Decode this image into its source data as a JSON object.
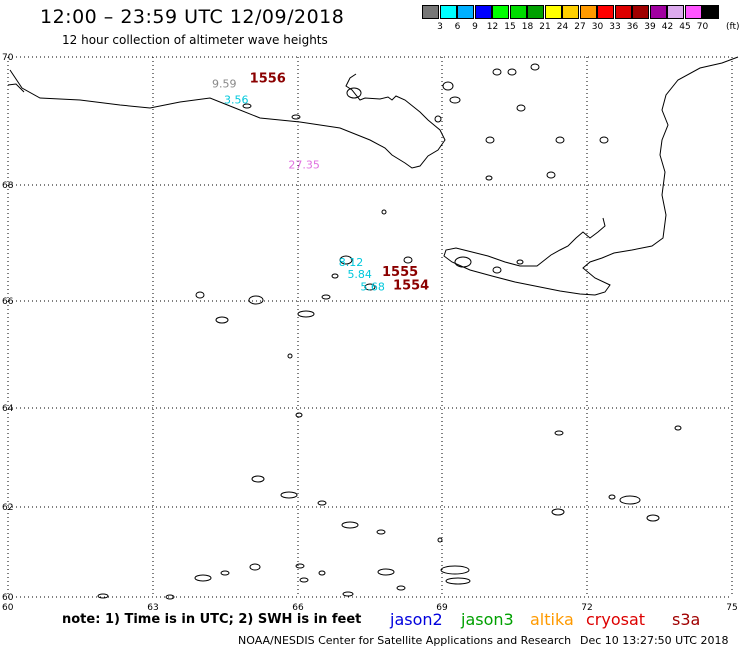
{
  "header": {
    "title": "12:00 – 23:59 UTC 12/09/2018",
    "subtitle": "12 hour collection of altimeter wave heights"
  },
  "scale": {
    "colors": [
      "#777777",
      "#00ffff",
      "#00b0ff",
      "#0000ff",
      "#00ff00",
      "#00dd00",
      "#00a000",
      "#ffff00",
      "#ffd000",
      "#ff9a00",
      "#ff0000",
      "#dd0000",
      "#a00000",
      "#a000a0",
      "#ddaaee",
      "#ff55ff",
      "#000000"
    ],
    "labels": [
      "3",
      "6",
      "9",
      "12",
      "15",
      "18",
      "21",
      "24",
      "27",
      "30",
      "33",
      "36",
      "39",
      "42",
      "45",
      "70"
    ],
    "unit": "(ft)"
  },
  "map": {
    "x_ticks": [
      "60",
      "63",
      "66",
      "69",
      "72",
      "75"
    ],
    "y_ticks": [
      "70",
      "68",
      "66",
      "64",
      "62",
      "60"
    ],
    "corner_label": "60",
    "observations": [
      {
        "text": "9.59",
        "color": "#888888",
        "lon": 64.22,
        "lat": 69.52
      },
      {
        "text": "3.56",
        "color": "#00c8dc",
        "lon": 64.47,
        "lat": 69.27
      },
      {
        "text": "27.35",
        "color": "#e070e0",
        "lon": 65.8,
        "lat": 68.26
      },
      {
        "text": "8.12",
        "color": "#00c8dc",
        "lon": 66.85,
        "lat": 66.6
      },
      {
        "text": "5.84",
        "color": "#00c8dc",
        "lon": 67.03,
        "lat": 66.4
      },
      {
        "text": "5.68",
        "color": "#00c8dc",
        "lon": 67.3,
        "lat": 66.18
      }
    ],
    "tracks": [
      {
        "text": "1556",
        "lon": 65.0,
        "lat": 69.6
      },
      {
        "text": "1555",
        "lon": 67.75,
        "lat": 66.43
      },
      {
        "text": "1554",
        "lon": 67.98,
        "lat": 66.2
      }
    ]
  },
  "footer": {
    "note": "note:  1) Time is in UTC;  2) SWH is in feet",
    "missions": [
      {
        "name": "jason2",
        "color": "#0000dd"
      },
      {
        "name": "jason3",
        "color": "#00a000"
      },
      {
        "name": "altika",
        "color": "#ff9a00"
      },
      {
        "name": "cryosat",
        "color": "#dd0000"
      },
      {
        "name": "s3a",
        "color": "#a00000"
      }
    ],
    "credit": "NOAA/NESDIS Center for Satellite Applications and Research",
    "issued": "Dec 10 13:27:50 UTC 2018"
  }
}
